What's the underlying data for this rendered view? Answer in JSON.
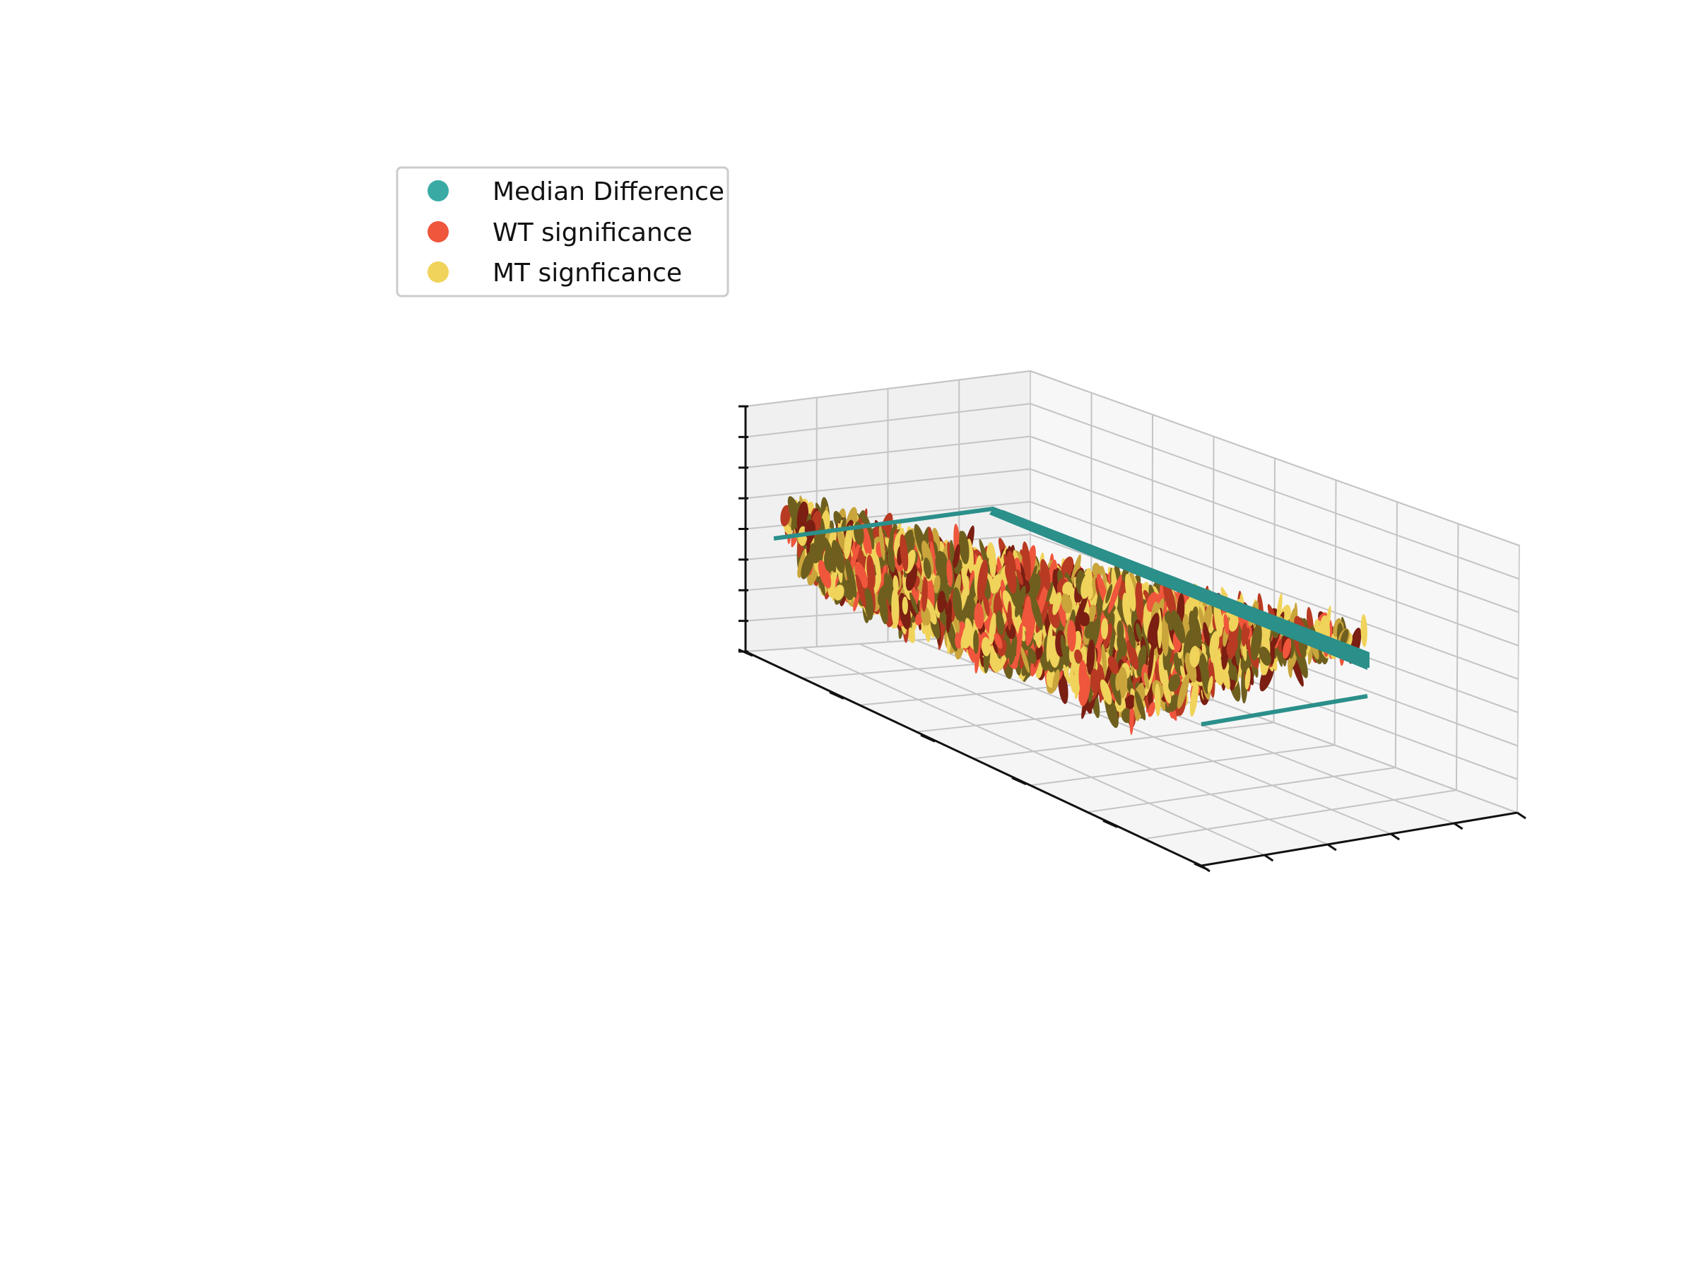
{
  "chart_data": {
    "type": "3d-surface",
    "title": "",
    "xlabel": "",
    "ylabel": "",
    "zlabel": "",
    "tick_labels_shown": false,
    "grid": true,
    "pane_color": "#f2f2f2",
    "legend": {
      "placement": "upper-left",
      "entries": [
        {
          "label": "Median Difference",
          "color": "#3aaba4"
        },
        {
          "label": "WT significance",
          "color": "#ef563b"
        },
        {
          "label": "MT signficance",
          "color": "#f0d35a"
        }
      ]
    },
    "series": [
      {
        "name": "Median Difference",
        "kind": "plane",
        "color": "#2b8f8a"
      },
      {
        "name": "WT significance",
        "kind": "noisy-surface",
        "colors": [
          "#ef563b",
          "#b83a22",
          "#7a1f12"
        ]
      },
      {
        "name": "MT signficance",
        "kind": "noisy-surface",
        "colors": [
          "#f0d35a",
          "#c9a53c",
          "#6e5f1e"
        ]
      }
    ]
  }
}
